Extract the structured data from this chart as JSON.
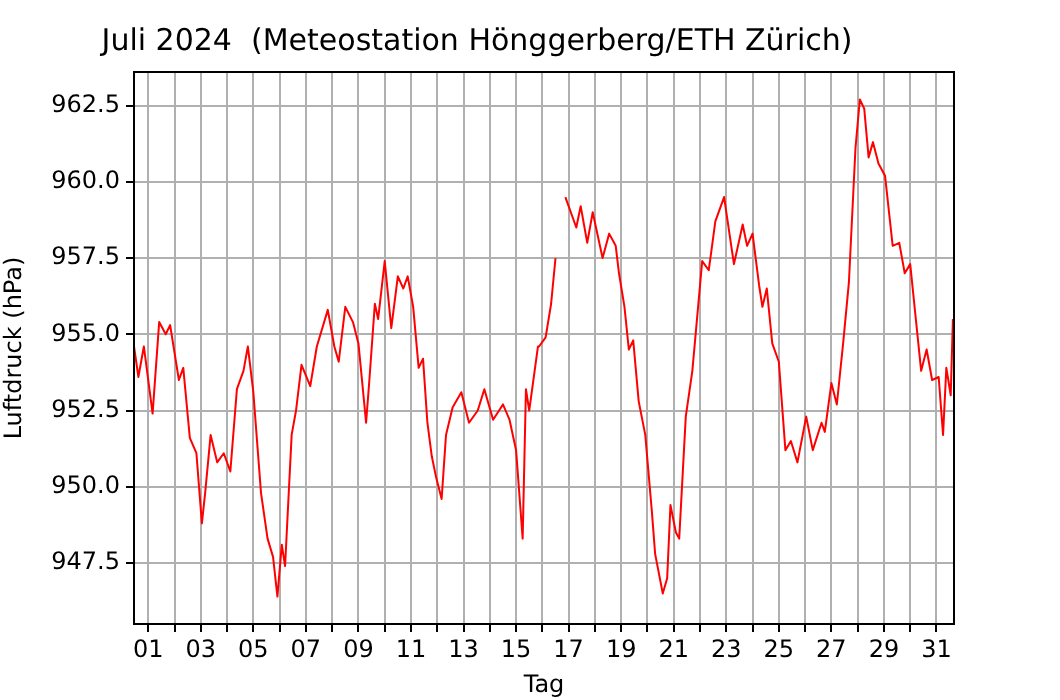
{
  "chart_data": {
    "type": "line",
    "title": "Juli 2024  (Meteostation Hönggerberg/ETH Zürich)",
    "xlabel": "Tag",
    "ylabel": "Luftdruck (hPa)",
    "x": [
      "2024-06-30T11:00",
      "2024-06-30T15:00",
      "2024-06-30T20:00",
      "2024-07-01T04:00",
      "2024-07-01T10:00",
      "2024-07-01T16:00",
      "2024-07-01T20:00",
      "2024-07-02T04:00",
      "2024-07-02T08:00",
      "2024-07-02T14:00",
      "2024-07-02T20:00",
      "2024-07-03T01:00",
      "2024-07-03T04:00",
      "2024-07-03T09:00",
      "2024-07-03T15:00",
      "2024-07-03T21:00",
      "2024-07-04T03:00",
      "2024-07-04T09:00",
      "2024-07-04T15:00",
      "2024-07-04T19:00",
      "2024-07-05T00:00",
      "2024-07-05T07:00",
      "2024-07-05T13:00",
      "2024-07-05T18:00",
      "2024-07-05T22:00",
      "2024-07-06T02:00",
      "2024-07-06T05:00",
      "2024-07-06T11:00",
      "2024-07-06T15:00",
      "2024-07-06T20:00",
      "2024-07-07T04:00",
      "2024-07-07T10:00",
      "2024-07-07T20:00",
      "2024-07-08T02:00",
      "2024-07-08T06:00",
      "2024-07-08T12:00",
      "2024-07-08T19:00",
      "2024-07-09T00:00",
      "2024-07-09T07:00",
      "2024-07-09T10:00",
      "2024-07-09T15:00",
      "2024-07-09T18:00",
      "2024-07-10T00:00",
      "2024-07-10T06:00",
      "2024-07-10T12:00",
      "2024-07-10T17:00",
      "2024-07-10T21:00",
      "2024-07-11T02:00",
      "2024-07-11T07:00",
      "2024-07-11T11:00",
      "2024-07-11T15:00",
      "2024-07-11T19:00",
      "2024-07-11T23:00",
      "2024-07-12T04:00",
      "2024-07-12T08:00",
      "2024-07-12T14:00",
      "2024-07-12T22:00",
      "2024-07-13T05:00",
      "2024-07-13T13:00",
      "2024-07-13T19:00",
      "2024-07-14T03:00",
      "2024-07-14T12:00",
      "2024-07-14T18:00",
      "2024-07-15T00:00",
      "2024-07-15T06:00",
      "2024-07-15T09:00",
      "2024-07-15T12:00",
      "2024-07-15T20:00",
      "2024-07-15T21:00",
      "2024-07-16T03:00",
      "2024-07-16T08:00",
      "2024-07-16T12:00",
      "2024-07-16T18:00",
      "2024-07-16T21:00",
      "2024-07-17T07:00",
      "2024-07-17T11:00",
      "2024-07-17T17:00",
      "2024-07-17T22:00",
      "2024-07-18T07:00",
      "2024-07-18T13:00",
      "2024-07-18T19:00",
      "2024-07-18T22:00",
      "2024-07-19T03:00",
      "2024-07-19T07:00",
      "2024-07-19T11:00",
      "2024-07-19T16:00",
      "2024-07-19T22:00",
      "2024-07-20T04:00",
      "2024-07-20T07:00",
      "2024-07-20T14:00",
      "2024-07-20T18:00",
      "2024-07-20T21:00",
      "2024-07-21T02:00",
      "2024-07-21T05:00",
      "2024-07-21T11:00",
      "2024-07-21T17:00",
      "2024-07-22T02:00",
      "2024-07-22T08:00",
      "2024-07-22T14:00",
      "2024-07-22T22:00",
      "2024-07-23T07:00",
      "2024-07-23T15:00",
      "2024-07-23T19:00",
      "2024-07-24T00:00",
      "2024-07-24T06:00",
      "2024-07-24T09:00",
      "2024-07-24T13:00",
      "2024-07-24T18:00",
      "2024-07-25T00:00",
      "2024-07-25T06:00",
      "2024-07-25T11:00",
      "2024-07-25T17:00",
      "2024-07-26T01:00",
      "2024-07-26T07:00",
      "2024-07-26T15:00",
      "2024-07-26T18:00",
      "2024-07-27T00:00",
      "2024-07-27T05:00",
      "2024-07-27T11:00",
      "2024-07-27T16:00",
      "2024-07-27T22:00",
      "2024-07-28T02:00",
      "2024-07-28T06:00",
      "2024-07-28T10:00",
      "2024-07-28T14:00",
      "2024-07-28T19:00",
      "2024-07-29T01:00",
      "2024-07-29T08:00",
      "2024-07-29T14:00",
      "2024-07-29T19:00",
      "2024-07-30T00:00",
      "2024-07-30T04:00",
      "2024-07-30T10:00",
      "2024-07-30T15:00",
      "2024-07-30T20:00",
      "2024-07-31T02:00",
      "2024-07-31T06:00",
      "2024-07-31T09:00",
      "2024-07-31T13:00",
      "2024-07-31T15:00"
    ],
    "series": [
      {
        "color": "#ff0000",
        "values": [
          954.6,
          953.6,
          954.6,
          952.4,
          955.4,
          955.0,
          955.3,
          953.5,
          953.9,
          951.6,
          951.1,
          948.8,
          949.8,
          951.7,
          950.8,
          951.1,
          950.5,
          953.2,
          953.8,
          954.6,
          953.1,
          949.8,
          948.3,
          947.7,
          946.4,
          948.1,
          947.4,
          951.7,
          952.5,
          954.0,
          953.3,
          954.6,
          955.8,
          954.6,
          954.1,
          955.9,
          955.4,
          954.7,
          952.1,
          953.5,
          956.0,
          955.5,
          957.4,
          955.2,
          956.9,
          956.5,
          956.9,
          955.9,
          953.9,
          954.2,
          952.1,
          951.0,
          950.3,
          949.6,
          951.7,
          952.6,
          953.1,
          952.1,
          952.5,
          953.2,
          952.2,
          952.7,
          952.2,
          951.2,
          948.3,
          953.2,
          952.5,
          954.6,
          954.6,
          954.9,
          956.0,
          957.5,
          null,
          959.5,
          958.5,
          959.2,
          958.0,
          959.0,
          957.5,
          958.3,
          957.9,
          957.0,
          955.9,
          954.5,
          954.8,
          952.8,
          951.7,
          949.2,
          947.8,
          946.5,
          947.0,
          949.4,
          948.5,
          948.3,
          952.3,
          953.8,
          957.4,
          957.1,
          958.7,
          959.5,
          957.3,
          958.6,
          957.9,
          958.3,
          956.6,
          955.9,
          956.5,
          954.7,
          954.1,
          951.2,
          951.5,
          950.8,
          952.3,
          951.2,
          952.1,
          951.8,
          953.4,
          952.7,
          954.8,
          956.7,
          961.1,
          962.7,
          962.4,
          960.8,
          961.3,
          960.6,
          960.2,
          957.9,
          958.0,
          957.0,
          957.3,
          955.9,
          953.8,
          954.5,
          953.5,
          953.6,
          951.7,
          953.9,
          953.0,
          955.5
        ]
      }
    ],
    "xlim": [
      "2024-06-30T11:00",
      "2024-07-31T16:00"
    ],
    "xticks": [
      {
        "value": "2024-07-01",
        "label": "01"
      },
      {
        "value": "2024-07-02",
        "label": null
      },
      {
        "value": "2024-07-03",
        "label": "03"
      },
      {
        "value": "2024-07-04",
        "label": null
      },
      {
        "value": "2024-07-05",
        "label": "05"
      },
      {
        "value": "2024-07-06",
        "label": null
      },
      {
        "value": "2024-07-07",
        "label": "07"
      },
      {
        "value": "2024-07-08",
        "label": null
      },
      {
        "value": "2024-07-09",
        "label": "09"
      },
      {
        "value": "2024-07-10",
        "label": null
      },
      {
        "value": "2024-07-11",
        "label": "11"
      },
      {
        "value": "2024-07-12",
        "label": null
      },
      {
        "value": "2024-07-13",
        "label": "13"
      },
      {
        "value": "2024-07-14",
        "label": null
      },
      {
        "value": "2024-07-15",
        "label": "15"
      },
      {
        "value": "2024-07-16",
        "label": null
      },
      {
        "value": "2024-07-17",
        "label": "17"
      },
      {
        "value": "2024-07-18",
        "label": null
      },
      {
        "value": "2024-07-19",
        "label": "19"
      },
      {
        "value": "2024-07-20",
        "label": null
      },
      {
        "value": "2024-07-21",
        "label": "21"
      },
      {
        "value": "2024-07-22",
        "label": null
      },
      {
        "value": "2024-07-23",
        "label": "23"
      },
      {
        "value": "2024-07-24",
        "label": null
      },
      {
        "value": "2024-07-25",
        "label": "25"
      },
      {
        "value": "2024-07-26",
        "label": null
      },
      {
        "value": "2024-07-27",
        "label": "27"
      },
      {
        "value": "2024-07-28",
        "label": null
      },
      {
        "value": "2024-07-29",
        "label": "29"
      },
      {
        "value": "2024-07-30",
        "label": null
      },
      {
        "value": "2024-07-31",
        "label": "31"
      }
    ],
    "ylim": [
      945.5,
      963.6
    ],
    "yticks": [
      947.5,
      {
        "value": 950,
        "label": "950.0"
      },
      952.5,
      {
        "value": 955,
        "label": "955.0"
      },
      957.5,
      {
        "value": 960,
        "label": "960.0"
      },
      962.5
    ],
    "grid": true,
    "marker": "none",
    "line_style": "solid",
    "legend": false
  }
}
